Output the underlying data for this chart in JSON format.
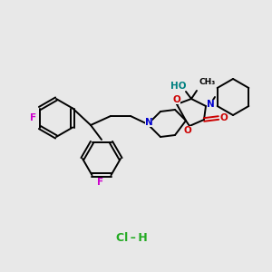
{
  "background_color": "#e8e8e8",
  "fig_size": [
    3.0,
    3.0
  ],
  "dpi": 100,
  "bond_color": "#000000",
  "bond_lw": 1.4,
  "atom_colors": {
    "F": "#cc00cc",
    "N": "#0000cc",
    "O": "#cc0000",
    "HO": "#008080",
    "Cl": "#22aa22"
  },
  "label_fontsize": 7.5,
  "small_fontsize": 6.5,
  "hcl_fontsize": 9.0
}
